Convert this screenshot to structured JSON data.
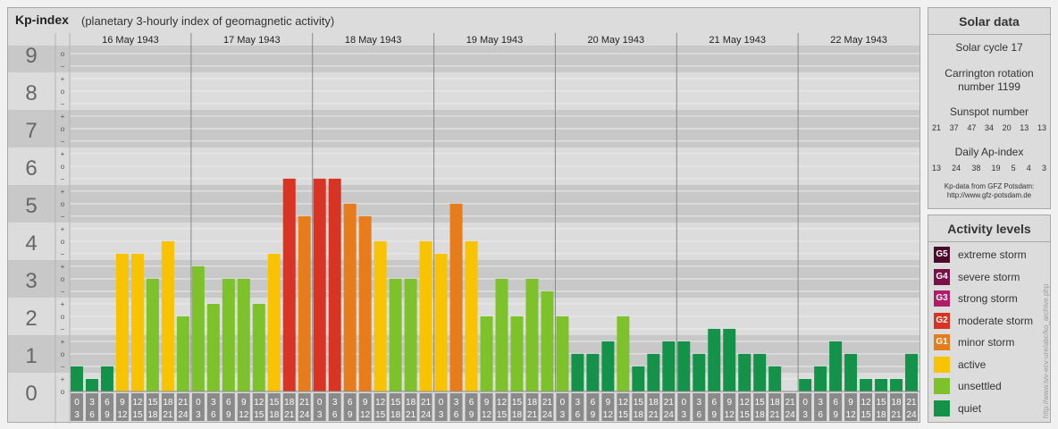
{
  "header": {
    "title": "Kp-index",
    "subtitle": "(planetary 3-hourly index of geomagnetic activity)"
  },
  "solar": {
    "title": "Solar data",
    "solar_cycle": "Solar cycle 17",
    "carrington_line1": "Carrington rotation",
    "carrington_line2": "number 1199",
    "sunspot_label": "Sunspot number",
    "sunspot_values": [
      "21",
      "37",
      "47",
      "34",
      "20",
      "13",
      "13"
    ],
    "ap_label": "Daily Ap-index",
    "ap_values": [
      "13",
      "24",
      "38",
      "19",
      "5",
      "4",
      "3"
    ],
    "credit_line1": "Kp-data from GFZ Potsdam:",
    "credit_line2": "http://www.gfz-potsdam.de"
  },
  "legend": {
    "title": "Activity levels",
    "items": [
      {
        "badge": "G5",
        "label": "extreme storm",
        "color": "#4b0a2c"
      },
      {
        "badge": "G4",
        "label": "severe storm",
        "color": "#7a1048"
      },
      {
        "badge": "G3",
        "label": "strong storm",
        "color": "#b21a6a"
      },
      {
        "badge": "G2",
        "label": "moderate storm",
        "color": "#d93324"
      },
      {
        "badge": "G1",
        "label": "minor storm",
        "color": "#e67c1c"
      },
      {
        "badge": "",
        "label": "active",
        "color": "#f8c300"
      },
      {
        "badge": "",
        "label": "unsettled",
        "color": "#7dc22a"
      },
      {
        "badge": "",
        "label": "quiet",
        "color": "#14924a"
      }
    ]
  },
  "side_text": "http://www.tvv-ecv-ure/abc/ko_archive.php",
  "chart_data": {
    "type": "bar",
    "title": "Kp-index",
    "ylim": [
      0,
      9
    ],
    "y_ticks": [
      "0",
      "1",
      "2",
      "3",
      "4",
      "5",
      "6",
      "7",
      "8",
      "9"
    ],
    "y_minor_marks": [
      "o",
      "+",
      "−"
    ],
    "days": [
      "16 May 1943",
      "17 May 1943",
      "18 May 1943",
      "19 May 1943",
      "20 May 1943",
      "21 May 1943",
      "22 May 1943"
    ],
    "interval_start": [
      "0",
      "3",
      "6",
      "9",
      "12",
      "15",
      "18",
      "21"
    ],
    "interval_end": [
      "3",
      "6",
      "9",
      "12",
      "15",
      "18",
      "21",
      "24"
    ],
    "values": [
      [
        0.667,
        0.333,
        0.667,
        3.667,
        3.667,
        3.0,
        4.0,
        2.0
      ],
      [
        3.333,
        2.333,
        3.0,
        3.0,
        2.333,
        3.667,
        5.667,
        4.667
      ],
      [
        5.667,
        5.667,
        5.0,
        4.667,
        4.0,
        3.0,
        3.0,
        4.0
      ],
      [
        3.667,
        5.0,
        4.0,
        2.0,
        3.0,
        2.0,
        3.0,
        2.667
      ],
      [
        2.0,
        1.0,
        1.0,
        1.333,
        2.0,
        0.667,
        1.0,
        1.333
      ],
      [
        1.333,
        1.0,
        1.667,
        1.667,
        1.0,
        1.0,
        0.667,
        0.0
      ],
      [
        0.333,
        0.667,
        1.333,
        1.0,
        0.333,
        0.333,
        0.333,
        1.0
      ]
    ],
    "level_colors": {
      "quiet": "#14924a",
      "unsettled": "#7dc22a",
      "active": "#f8c300",
      "minor_storm": "#e67c1c",
      "moderate_storm": "#d93324"
    }
  }
}
